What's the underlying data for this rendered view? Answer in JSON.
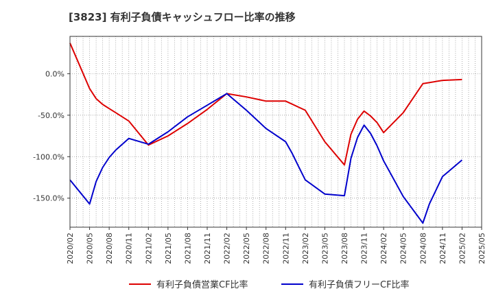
{
  "chart_data": {
    "type": "line",
    "title": "[3823]  有利子負債キャッシュフロー比率の推移",
    "xlabel": "",
    "ylabel": "",
    "x_ticks": [
      "2020/02",
      "2020/05",
      "2020/08",
      "2020/11",
      "2021/02",
      "2021/05",
      "2021/08",
      "2021/11",
      "2022/02",
      "2022/05",
      "2022/08",
      "2022/11",
      "2023/02",
      "2023/05",
      "2023/08",
      "2023/11",
      "2024/02",
      "2024/05",
      "2024/08",
      "2024/11",
      "2025/02",
      "2025/05"
    ],
    "y_ticks": [
      0,
      -50,
      -100,
      -150
    ],
    "y_tick_labels": [
      "0.0%",
      "-50.0%",
      "-100.0%",
      "-150.0%"
    ],
    "xlim": [
      "2020/02",
      "2025/05"
    ],
    "ylim": [
      -185,
      45
    ],
    "grid": true,
    "legend_position": "bottom",
    "series": [
      {
        "name": "有利子負債営業CF比率",
        "color": "#dd0000",
        "points": [
          [
            "2020/02",
            37
          ],
          [
            "2020/05",
            -18
          ],
          [
            "2020/06",
            -30
          ],
          [
            "2020/07",
            -37
          ],
          [
            "2020/08",
            -42
          ],
          [
            "2020/09",
            -47
          ],
          [
            "2020/11",
            -57
          ],
          [
            "2021/02",
            -86
          ],
          [
            "2021/05",
            -75
          ],
          [
            "2021/08",
            -60
          ],
          [
            "2021/11",
            -43
          ],
          [
            "2022/02",
            -24
          ],
          [
            "2022/05",
            -28
          ],
          [
            "2022/08",
            -33
          ],
          [
            "2022/11",
            -33
          ],
          [
            "2023/02",
            -44
          ],
          [
            "2023/05",
            -82
          ],
          [
            "2023/08",
            -110
          ],
          [
            "2023/09",
            -73
          ],
          [
            "2023/10",
            -55
          ],
          [
            "2023/11",
            -45
          ],
          [
            "2023/12",
            -51
          ],
          [
            "2024/01",
            -59
          ],
          [
            "2024/02",
            -71
          ],
          [
            "2024/05",
            -47
          ],
          [
            "2024/08",
            -12
          ],
          [
            "2024/11",
            -8
          ],
          [
            "2025/02",
            -7
          ]
        ]
      },
      {
        "name": "有利子負債フリーCF比率",
        "color": "#0000cc",
        "points": [
          [
            "2020/02",
            -128
          ],
          [
            "2020/05",
            -157
          ],
          [
            "2020/06",
            -130
          ],
          [
            "2020/07",
            -113
          ],
          [
            "2020/08",
            -101
          ],
          [
            "2020/09",
            -92
          ],
          [
            "2020/11",
            -78
          ],
          [
            "2021/02",
            -85
          ],
          [
            "2021/05",
            -70
          ],
          [
            "2021/08",
            -52
          ],
          [
            "2021/11",
            -38
          ],
          [
            "2022/02",
            -24
          ],
          [
            "2022/05",
            -44
          ],
          [
            "2022/08",
            -66
          ],
          [
            "2022/11",
            -82
          ],
          [
            "2022/12",
            -96
          ],
          [
            "2023/01",
            -112
          ],
          [
            "2023/02",
            -128
          ],
          [
            "2023/05",
            -145
          ],
          [
            "2023/08",
            -147
          ],
          [
            "2023/09",
            -102
          ],
          [
            "2023/10",
            -77
          ],
          [
            "2023/11",
            -62
          ],
          [
            "2023/12",
            -72
          ],
          [
            "2024/01",
            -87
          ],
          [
            "2024/02",
            -105
          ],
          [
            "2024/05",
            -148
          ],
          [
            "2024/08",
            -180
          ],
          [
            "2024/09",
            -157
          ],
          [
            "2024/11",
            -124
          ],
          [
            "2025/02",
            -104
          ]
        ]
      }
    ]
  }
}
